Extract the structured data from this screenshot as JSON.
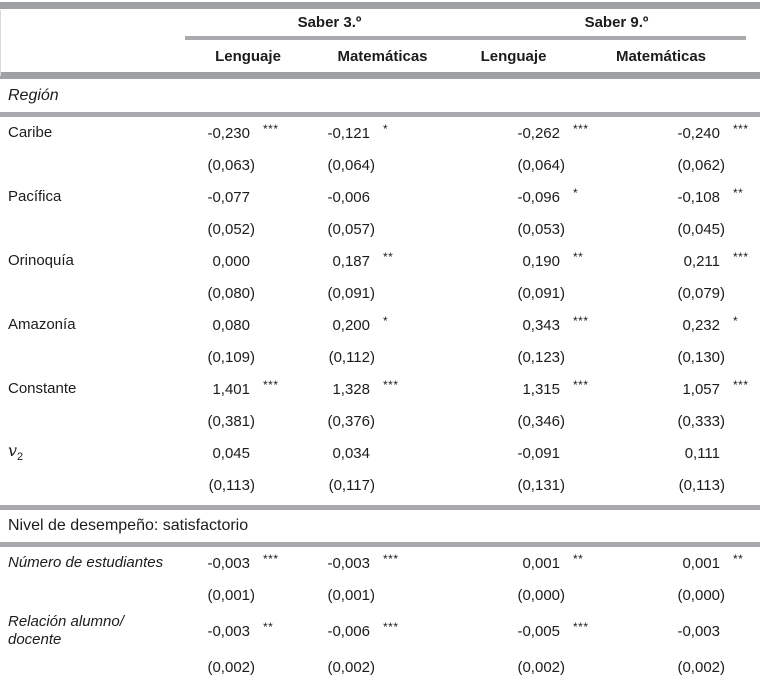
{
  "table": {
    "col_groups": [
      "Saber 3.º",
      "Saber 9.º"
    ],
    "sub_columns": [
      "Lenguaje",
      "Matemáticas",
      "Lenguaje",
      "Matemáticas"
    ],
    "sections": [
      {
        "title": "Región",
        "rows": [
          {
            "label": "Caribe",
            "cells": [
              {
                "value": "-0,230",
                "stars": "***",
                "se": "(0,063)"
              },
              {
                "value": "-0,121",
                "stars": "*",
                "se": "(0,064)"
              },
              {
                "value": "-0,262",
                "stars": "***",
                "se": "(0,064)"
              },
              {
                "value": "-0,240",
                "stars": "***",
                "se": "(0,062)"
              }
            ]
          },
          {
            "label": "Pacífica",
            "cells": [
              {
                "value": "-0,077",
                "stars": "",
                "se": "(0,052)"
              },
              {
                "value": "-0,006",
                "stars": "",
                "se": "(0,057)"
              },
              {
                "value": "-0,096",
                "stars": "*",
                "se": "(0,053)"
              },
              {
                "value": "-0,108",
                "stars": "**",
                "se": "(0,045)"
              }
            ]
          },
          {
            "label": "Orinoquía",
            "cells": [
              {
                "value": "0,000",
                "stars": "",
                "se": "(0,080)"
              },
              {
                "value": "0,187",
                "stars": "**",
                "se": "(0,091)"
              },
              {
                "value": "0,190",
                "stars": "**",
                "se": "(0,091)"
              },
              {
                "value": "0,211",
                "stars": "***",
                "se": "(0,079)"
              }
            ]
          },
          {
            "label": "Amazonía",
            "cells": [
              {
                "value": "0,080",
                "stars": "",
                "se": "(0,109)"
              },
              {
                "value": "0,200",
                "stars": "*",
                "se": "(0,112)"
              },
              {
                "value": "0,343",
                "stars": "***",
                "se": "(0,123)"
              },
              {
                "value": "0,232",
                "stars": "*",
                "se": "(0,130)"
              }
            ]
          },
          {
            "label": "Constante",
            "cells": [
              {
                "value": "1,401",
                "stars": "***",
                "se": "(0,381)"
              },
              {
                "value": "1,328",
                "stars": "***",
                "se": "(0,376)"
              },
              {
                "value": "1,315",
                "stars": "***",
                "se": "(0,346)"
              },
              {
                "value": "1,057",
                "stars": "***",
                "se": "(0,333)"
              }
            ]
          },
          {
            "label": "v",
            "label_sub": "2",
            "cells": [
              {
                "value": "0,045",
                "stars": "",
                "se": "(0,113)"
              },
              {
                "value": "0,034",
                "stars": "",
                "se": "(0,117)"
              },
              {
                "value": "-0,091",
                "stars": "",
                "se": "(0,131)"
              },
              {
                "value": "0,111",
                "stars": "",
                "se": "(0,113)"
              }
            ]
          }
        ]
      },
      {
        "title": "Nivel de desempeño: satisfactorio",
        "rows": [
          {
            "label": "Número de estudiantes",
            "cells": [
              {
                "value": "-0,003",
                "stars": "***",
                "se": "(0,001)"
              },
              {
                "value": "-0,003",
                "stars": "***",
                "se": "(0,001)"
              },
              {
                "value": "0,001",
                "stars": "**",
                "se": "(0,000)"
              },
              {
                "value": "0,001",
                "stars": "**",
                "se": "(0,000)"
              }
            ]
          },
          {
            "label": "Relación alumno/",
            "label_line2": "docente",
            "cells": [
              {
                "value": "-0,003",
                "stars": "**",
                "se": "(0,002)"
              },
              {
                "value": "-0,006",
                "stars": "***",
                "se": "(0,002)"
              },
              {
                "value": "-0,005",
                "stars": "***",
                "se": "(0,002)"
              },
              {
                "value": "-0,003",
                "stars": "",
                "se": "(0,002)"
              }
            ]
          }
        ]
      }
    ]
  }
}
